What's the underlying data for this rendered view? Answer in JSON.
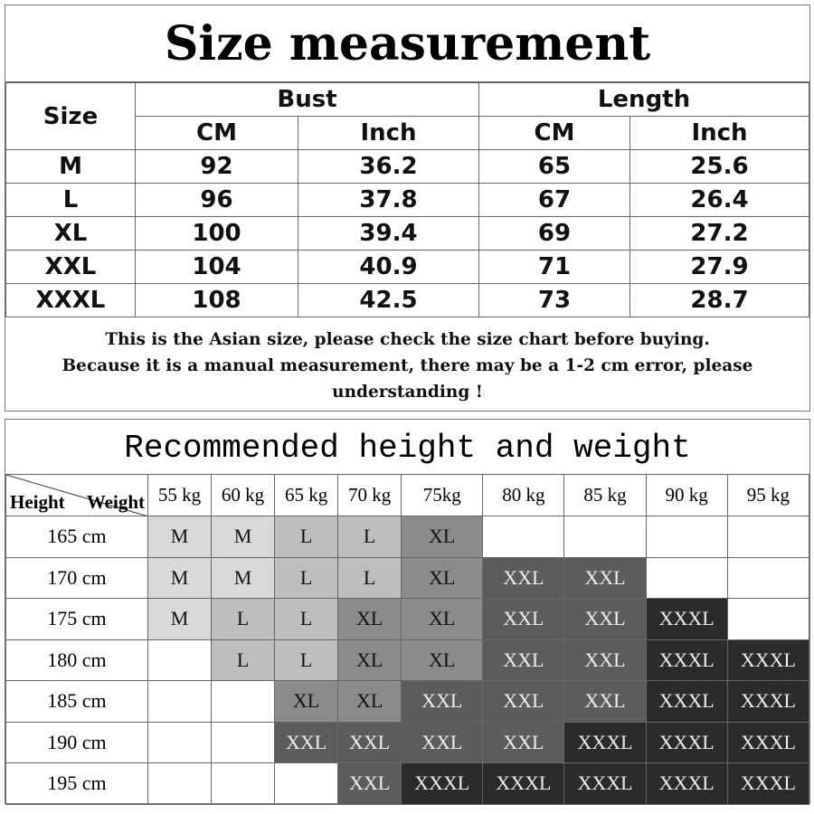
{
  "size_table": {
    "title": "Size measurement",
    "headers": {
      "size": "Size",
      "bust": "Bust",
      "length": "Length",
      "cm": "CM",
      "inch": "Inch"
    },
    "rows": [
      [
        "M",
        "92",
        "36.2",
        "65",
        "25.6"
      ],
      [
        "L",
        "96",
        "37.8",
        "67",
        "26.4"
      ],
      [
        "XL",
        "100",
        "39.4",
        "69",
        "27.2"
      ],
      [
        "XXL",
        "104",
        "40.9",
        "71",
        "27.9"
      ],
      [
        "XXXL",
        "108",
        "42.5",
        "73",
        "28.7"
      ]
    ],
    "note_lines": [
      "This is the Asian size, please check the size chart before buying.",
      "Because it is a manual measurement, there may be a 1-2 cm error, please",
      "understanding !"
    ]
  },
  "recommend_table": {
    "title": "Recommended height and weight",
    "corner": {
      "height": "Height",
      "weight": "Weight"
    },
    "weights": [
      "55 kg",
      "60 kg",
      "65 kg",
      "70 kg",
      "75kg",
      "80 kg",
      "85 kg",
      "90 kg",
      "95 kg"
    ],
    "rows": [
      {
        "height": "165 cm",
        "sizes": [
          "M",
          "M",
          "L",
          "L",
          "XL",
          "",
          "",
          "",
          ""
        ]
      },
      {
        "height": "170 cm",
        "sizes": [
          "M",
          "M",
          "L",
          "L",
          "XL",
          "XXL",
          "XXL",
          "",
          ""
        ]
      },
      {
        "height": "175 cm",
        "sizes": [
          "M",
          "L",
          "L",
          "XL",
          "XL",
          "XXL",
          "XXL",
          "XXXL",
          ""
        ]
      },
      {
        "height": "180 cm",
        "sizes": [
          "",
          "L",
          "L",
          "XL",
          "XL",
          "XXL",
          "XXL",
          "XXXL",
          "XXXL"
        ]
      },
      {
        "height": "185 cm",
        "sizes": [
          "",
          "",
          "XL",
          "XL",
          "XXL",
          "XXL",
          "XXL",
          "XXXL",
          "XXXL"
        ]
      },
      {
        "height": "190 cm",
        "sizes": [
          "",
          "",
          "XXL",
          "XXL",
          "XXL",
          "XXL",
          "XXXL",
          "XXXL",
          "XXXL"
        ]
      },
      {
        "height": "195 cm",
        "sizes": [
          "",
          "",
          "",
          "XXL",
          "XXXL",
          "XXXL",
          "XXXL",
          "XXXL",
          "XXXL"
        ]
      }
    ],
    "size_colors": {
      "M": "#d9d9d9",
      "L": "#bebebe",
      "XL": "#8b8b8b",
      "XXL": "#5c5c5c",
      "XXXL": "#2b2b2b"
    }
  }
}
